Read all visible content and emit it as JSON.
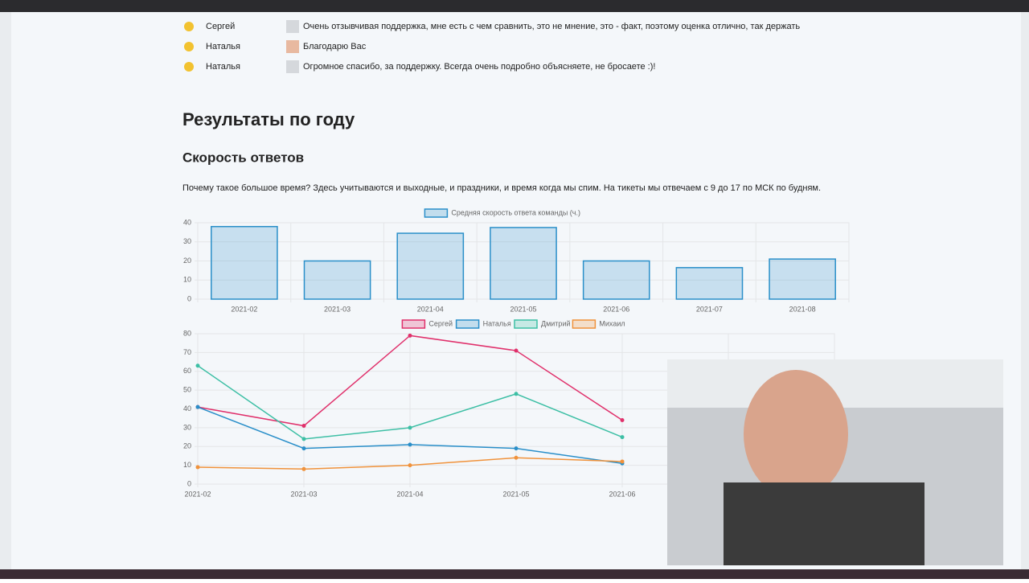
{
  "feedback": [
    {
      "name": "Сергей",
      "comment": "Очень отзывчивая поддержка, мне есть с чем сравнить, это не мнение, это - факт, поэтому оценка отлично, так держать"
    },
    {
      "name": "Наталья",
      "comment": "Благодарю Вас"
    },
    {
      "name": "Наталья",
      "comment": "Огромное спасибо, за поддержку. Всегда очень подробно объясняете, не бросаете :)!"
    }
  ],
  "heading": "Результаты по году",
  "subheading": "Скорость ответов",
  "paragraph": "Почему такое большое время? Здесь учитываются и выходные, и праздники, и время когда мы спим. На тикеты мы отвечаем с 9 до 17 по МСК по будням.",
  "chart_data": [
    {
      "type": "bar",
      "categories": [
        "2021-02",
        "2021-03",
        "2021-04",
        "2021-05",
        "2021-06",
        "2021-07",
        "2021-08"
      ],
      "series": [
        {
          "name": "Средняя скорость ответа команды (ч.)",
          "color": "#2a8fc9",
          "values": [
            38,
            20,
            34.5,
            37.5,
            20,
            16.5,
            21
          ]
        }
      ],
      "ylim": [
        0,
        40
      ],
      "yticks": [
        0,
        10,
        20,
        30,
        40
      ],
      "grid": true
    },
    {
      "type": "line",
      "categories": [
        "2021-02",
        "2021-03",
        "2021-04",
        "2021-05",
        "2021-06",
        null,
        null
      ],
      "series": [
        {
          "name": "Сергей",
          "color": "#e0306b",
          "values": [
            41,
            31,
            79,
            71,
            34,
            null,
            null
          ]
        },
        {
          "name": "Наталья",
          "color": "#2a8fc9",
          "values": [
            41,
            19,
            21,
            19,
            11,
            null,
            null
          ]
        },
        {
          "name": "Дмитрий",
          "color": "#3dbfa5",
          "values": [
            63,
            24,
            30,
            48,
            25,
            null,
            null
          ]
        },
        {
          "name": "Михаил",
          "color": "#f0923b",
          "values": [
            9,
            8,
            10,
            14,
            12,
            null,
            null
          ]
        }
      ],
      "ylim": [
        0,
        80
      ],
      "yticks": [
        0,
        10,
        20,
        30,
        40,
        50,
        60,
        70,
        80
      ],
      "grid": true
    }
  ]
}
